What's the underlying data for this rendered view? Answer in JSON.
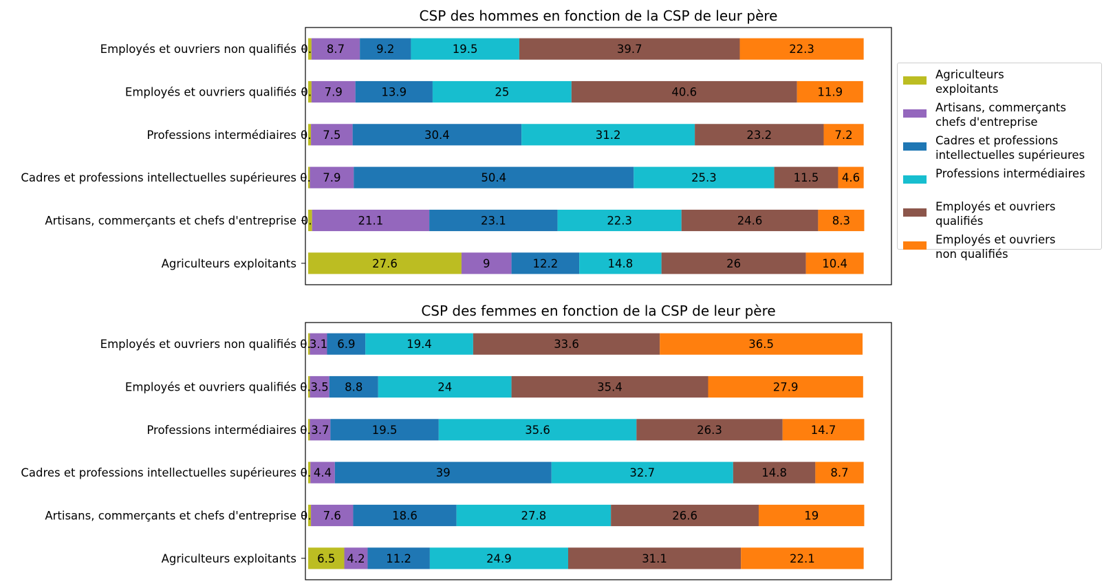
{
  "chart_data": [
    {
      "type": "bar",
      "orientation": "horizontal",
      "stacked": true,
      "title": "CSP des hommes en fonction de la CSP de leur père",
      "categories": [
        "Agriculteurs exploitants",
        "Artisans, commerçants et chefs d'entreprise",
        "Cadres et professions intellectuelles supérieures",
        "Professions intermédiaires",
        "Employés et ouvriers qualifiés",
        "Employés et ouvriers non qualifiés"
      ],
      "xlim": [
        -0.5,
        105
      ],
      "series": [
        {
          "name": "Agriculteurs\n exploitants",
          "color": "#bcbd22",
          "values": [
            27.6,
            0.7,
            0.3,
            0.5,
            0.6,
            0.6
          ],
          "labels": [
            "27.6",
            "0.7",
            "0.3",
            "0.5",
            "0.6",
            "0.6"
          ]
        },
        {
          "name": "Artisans, commerçants\n chefs d'entreprise",
          "color": "#9467bd",
          "values": [
            9,
            21.1,
            7.9,
            7.5,
            7.9,
            8.7
          ],
          "labels": [
            "9",
            "21.1",
            "7.9",
            "7.5",
            "7.9",
            "8.7"
          ]
        },
        {
          "name": "Cadres et professions\n intellectuelles supérieures",
          "color": "#1f77b4",
          "values": [
            12.2,
            23.1,
            50.4,
            30.4,
            13.9,
            9.2
          ],
          "labels": [
            "12.2",
            "23.1",
            "50.4",
            "30.4",
            "13.9",
            "9.2"
          ]
        },
        {
          "name": "Professions intermédiaires",
          "color": "#17becf",
          "values": [
            14.8,
            22.3,
            25.3,
            31.2,
            25,
            19.5
          ],
          "labels": [
            "14.8",
            "22.3",
            "25.3",
            "31.2",
            "25",
            "19.5"
          ]
        },
        {
          "name": "Employés et ouvriers\n qualifiés",
          "color": "#8c564b",
          "values": [
            26,
            24.6,
            11.5,
            23.2,
            40.6,
            39.7
          ],
          "labels": [
            "26",
            "24.6",
            "11.5",
            "23.2",
            "40.6",
            "39.7"
          ]
        },
        {
          "name": "Employés et ouvriers\n non qualifiés",
          "color": "#ff7f0e",
          "values": [
            10.4,
            8.3,
            4.6,
            7.2,
            11.9,
            22.3
          ],
          "labels": [
            "10.4",
            "8.3",
            "4.6",
            "7.2",
            "11.9",
            "22.3"
          ]
        }
      ],
      "legend": "right"
    },
    {
      "type": "bar",
      "orientation": "horizontal",
      "stacked": true,
      "title": "CSP des femmes en fonction de la CSP de leur père",
      "categories": [
        "Agriculteurs exploitants",
        "Artisans, commerçants et chefs d'entreprise",
        "Cadres et professions intellectuelles supérieures",
        "Professions intermédiaires",
        "Employés et ouvriers qualifiés",
        "Employés et ouvriers non qualifiés"
      ],
      "xlim": [
        -0.5,
        105
      ],
      "series": [
        {
          "name": "Agriculteurs exploitants",
          "color": "#bcbd22",
          "values": [
            6.5,
            0.5,
            0.4,
            0.3,
            0.3,
            0.3
          ],
          "labels": [
            "6.5",
            "0.5",
            "0.4",
            "0.3",
            "0.3",
            "0.3"
          ]
        },
        {
          "name": "Artisans, commerçants chefs d'entreprise",
          "color": "#9467bd",
          "values": [
            4.2,
            7.6,
            4.4,
            3.7,
            3.5,
            3.1
          ],
          "labels": [
            "4.2",
            "7.6",
            "4.4",
            "3.7",
            "3.5",
            "3.1"
          ]
        },
        {
          "name": "Cadres et professions intellectuelles supérieures",
          "color": "#1f77b4",
          "values": [
            11.2,
            18.6,
            39,
            19.5,
            8.8,
            6.9
          ],
          "labels": [
            "11.2",
            "18.6",
            "39",
            "19.5",
            "8.8",
            "6.9"
          ]
        },
        {
          "name": "Professions intermédiaires",
          "color": "#17becf",
          "values": [
            24.9,
            27.8,
            32.7,
            35.6,
            24,
            19.4
          ],
          "labels": [
            "24.9",
            "27.8",
            "32.7",
            "35.6",
            "24",
            "19.4"
          ]
        },
        {
          "name": "Employés et ouvriers qualifiés",
          "color": "#8c564b",
          "values": [
            31.1,
            26.6,
            14.8,
            26.3,
            35.4,
            33.6
          ],
          "labels": [
            "31.1",
            "26.6",
            "14.8",
            "26.3",
            "35.4",
            "33.6"
          ]
        },
        {
          "name": "Employés et ouvriers non qualifiés",
          "color": "#ff7f0e",
          "values": [
            22.1,
            19,
            8.7,
            14.7,
            27.9,
            36.5
          ],
          "labels": [
            "22.1",
            "19",
            "8.7",
            "14.7",
            "27.9",
            "36.5"
          ]
        }
      ]
    }
  ]
}
